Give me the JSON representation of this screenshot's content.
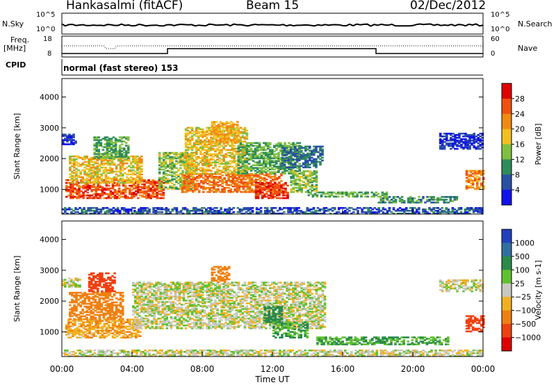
{
  "header": {
    "site": "Hankasalmi (fitACF)",
    "beam": "Beam 15",
    "date": "02/Dec/2012"
  },
  "top_panels": {
    "nsky_label": "N.Sky",
    "nsearch_label": "N.Search",
    "nsky_ticks": [
      "10^5",
      "10^0"
    ],
    "nsearch_ticks": [
      "10^5",
      "10^0"
    ],
    "freq_label_1": "Freq.",
    "freq_label_2": "[MHz]",
    "freq_ticks": [
      "18",
      "8"
    ],
    "nave_label": "Nave",
    "nave_ticks": [
      "60",
      "0"
    ],
    "cpid_label": "CPID",
    "cpid_text": "normal (fast stereo) 153"
  },
  "chart_data": [
    {
      "type": "heatmap",
      "title": "",
      "ylabel": "Slant Range [km]",
      "ylim": [
        200,
        4600
      ],
      "yticks": [
        1000,
        2000,
        3000,
        4000
      ],
      "xlabel": "Time UT",
      "xlim": [
        0,
        24
      ],
      "xticks": [
        "00:00",
        "04:00",
        "08:00",
        "12:00",
        "16:00",
        "20:00",
        "00:00"
      ],
      "colorbar": {
        "label": "Power [dB]",
        "range": [
          0,
          32
        ],
        "ticks": [
          "4",
          "8",
          "12",
          "16",
          "20",
          "24",
          "28"
        ],
        "colors": [
          "#1212ee",
          "#2a4fa6",
          "#2f8b5a",
          "#7fbf3f",
          "#f0c020",
          "#f08a10",
          "#f05010",
          "#e00000"
        ]
      },
      "regions": [
        {
          "t0": 0.0,
          "t1": 0.8,
          "r0": 2450,
          "r1": 2800,
          "level": 4
        },
        {
          "t0": 0.2,
          "t1": 5.8,
          "r0": 700,
          "r1": 1300,
          "level": 26
        },
        {
          "t0": 0.4,
          "t1": 4.5,
          "r0": 1200,
          "r1": 2100,
          "level": 18
        },
        {
          "t0": 1.8,
          "t1": 3.8,
          "r0": 2000,
          "r1": 2700,
          "level": 12
        },
        {
          "t0": 5.5,
          "t1": 7.5,
          "r0": 1000,
          "r1": 2200,
          "level": 14
        },
        {
          "t0": 6.8,
          "t1": 12.5,
          "r0": 900,
          "r1": 1500,
          "level": 24
        },
        {
          "t0": 7.0,
          "t1": 10.5,
          "r0": 1500,
          "r1": 3000,
          "level": 18
        },
        {
          "t0": 8.5,
          "t1": 10.0,
          "r0": 2500,
          "r1": 3200,
          "level": 20
        },
        {
          "t0": 10.0,
          "t1": 13.5,
          "r0": 1500,
          "r1": 2500,
          "level": 12
        },
        {
          "t0": 11.0,
          "t1": 12.8,
          "r0": 700,
          "r1": 1200,
          "level": 28
        },
        {
          "t0": 12.5,
          "t1": 14.8,
          "r0": 1700,
          "r1": 2400,
          "level": 8
        },
        {
          "t0": 13.0,
          "t1": 14.5,
          "r0": 900,
          "r1": 1600,
          "level": 14
        },
        {
          "t0": 14.0,
          "t1": 18.5,
          "r0": 750,
          "r1": 900,
          "level": 12
        },
        {
          "t0": 18.0,
          "t1": 22.5,
          "r0": 560,
          "r1": 760,
          "level": 10
        },
        {
          "t0": 21.5,
          "t1": 24.0,
          "r0": 2300,
          "r1": 2800,
          "level": 4
        },
        {
          "t0": 23.0,
          "t1": 24.0,
          "r0": 1000,
          "r1": 1600,
          "level": 22
        },
        {
          "t0": 0.0,
          "t1": 24.0,
          "r0": 200,
          "r1": 400,
          "level": 6
        }
      ]
    },
    {
      "type": "heatmap",
      "title": "",
      "ylabel": "Slant Range [km]",
      "ylim": [
        200,
        4600
      ],
      "yticks": [
        1000,
        2000,
        3000,
        4000
      ],
      "xlabel": "Time UT",
      "xlim": [
        0,
        24
      ],
      "xticks": [
        "00:00",
        "04:00",
        "08:00",
        "12:00",
        "16:00",
        "20:00",
        "00:00"
      ],
      "colorbar": {
        "label": "Velocity [m s-1]",
        "ticks": [
          "1000",
          "500",
          "100",
          "25",
          "−25",
          "−100",
          "−500",
          "−1000"
        ],
        "colors": [
          "#2040c0",
          "#3070a0",
          "#2a8a4a",
          "#60c030",
          "#c8c8c0",
          "#f0b020",
          "#f08010",
          "#f04010",
          "#e00000"
        ]
      },
      "regions": [
        {
          "t0": 0.0,
          "t1": 1.0,
          "r0": 2450,
          "r1": 2750,
          "level": 0
        },
        {
          "t0": 0.2,
          "t1": 4.5,
          "r0": 800,
          "r1": 1400,
          "level": -80
        },
        {
          "t0": 0.4,
          "t1": 3.5,
          "r0": 1400,
          "r1": 2300,
          "level": -300
        },
        {
          "t0": 1.5,
          "t1": 3.0,
          "r0": 2300,
          "r1": 2900,
          "level": -600
        },
        {
          "t0": 4.0,
          "t1": 15.0,
          "r0": 1100,
          "r1": 2600,
          "level": 0
        },
        {
          "t0": 8.5,
          "t1": 9.5,
          "r0": 2600,
          "r1": 3100,
          "level": -200
        },
        {
          "t0": 11.5,
          "t1": 12.5,
          "r0": 1300,
          "r1": 1800,
          "level": 200
        },
        {
          "t0": 12.0,
          "t1": 14.0,
          "r0": 800,
          "r1": 1300,
          "level": 100
        },
        {
          "t0": 14.5,
          "t1": 22.0,
          "r0": 580,
          "r1": 820,
          "level": 100
        },
        {
          "t0": 21.5,
          "t1": 24.0,
          "r0": 2300,
          "r1": 2700,
          "level": 0
        },
        {
          "t0": 23.0,
          "t1": 24.0,
          "r0": 1000,
          "r1": 1500,
          "level": -600
        },
        {
          "t0": 0.0,
          "t1": 24.0,
          "r0": 200,
          "r1": 400,
          "level": 0
        }
      ]
    }
  ]
}
